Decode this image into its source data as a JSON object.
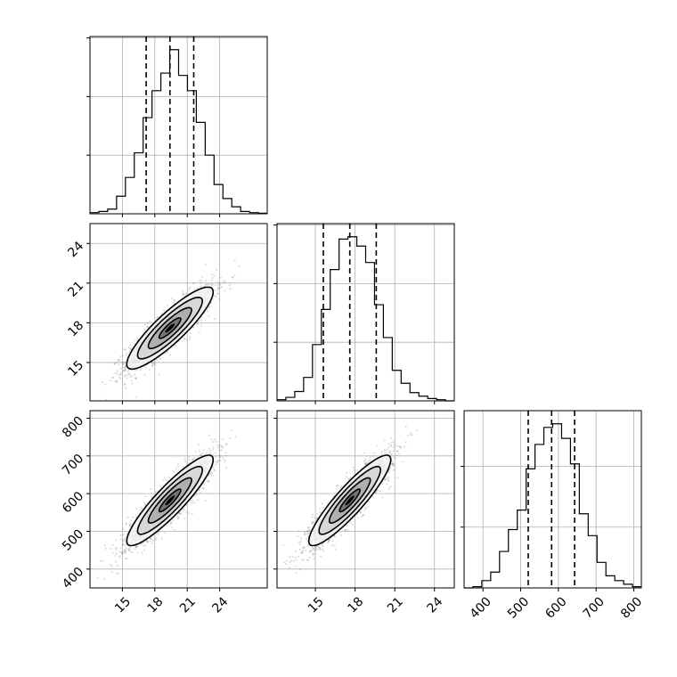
{
  "chart_data": {
    "type": "corner",
    "parameters": [
      {
        "id": "p1",
        "label": "",
        "range": [
          12.0,
          28.4
        ],
        "mean": 19.4,
        "sd": 2.0,
        "quantiles": [
          17.2,
          19.4,
          21.6
        ],
        "ticks": [
          15,
          18,
          21,
          24
        ]
      },
      {
        "id": "p2",
        "label": "",
        "range": [
          12.1,
          25.5
        ],
        "mean": 17.6,
        "sd": 1.55,
        "quantiles": [
          15.6,
          17.6,
          19.6
        ],
        "ticks": [
          15,
          18,
          21,
          24
        ]
      },
      {
        "id": "p3",
        "label": "",
        "range": [
          350,
          820
        ],
        "mean": 582,
        "sd": 60,
        "quantiles": [
          520,
          582,
          643
        ],
        "ticks": [
          400,
          500,
          600,
          700,
          800
        ]
      }
    ],
    "correlations": [
      [
        1,
        0.88,
        0.9
      ],
      [
        0.88,
        1,
        0.9
      ],
      [
        0.9,
        0.9,
        1
      ]
    ],
    "diagonal_histograms": [
      {
        "param": "p1",
        "bin_edges": [
          12.0,
          12.82,
          13.64,
          14.46,
          15.28,
          16.1,
          16.92,
          17.74,
          18.56,
          19.38,
          20.2,
          21.02,
          21.84,
          22.66,
          23.48,
          24.3,
          25.12,
          25.94,
          26.76,
          27.58,
          28.4
        ],
        "counts": [
          10,
          20,
          40,
          150,
          310,
          520,
          820,
          1050,
          1200,
          1400,
          1180,
          1050,
          780,
          500,
          250,
          130,
          60,
          20,
          10,
          5
        ]
      },
      {
        "param": "p2",
        "bin_edges": [
          12.1,
          12.77,
          13.44,
          14.11,
          14.78,
          15.45,
          16.12,
          16.79,
          17.46,
          18.13,
          18.8,
          19.47,
          20.14,
          20.81,
          21.48,
          22.15,
          22.82,
          23.49,
          24.16,
          24.83,
          25.5
        ],
        "counts": [
          10,
          30,
          80,
          200,
          480,
          780,
          1120,
          1380,
          1400,
          1320,
          1180,
          820,
          540,
          260,
          150,
          70,
          40,
          20,
          10,
          0
        ]
      },
      {
        "param": "p3",
        "bin_edges": [
          350,
          373.5,
          397,
          420.5,
          444,
          467.5,
          491,
          514.5,
          538,
          561.5,
          585,
          608.5,
          632,
          655.5,
          679,
          702.5,
          726,
          749.5,
          773,
          796.5,
          820
        ],
        "counts": [
          0,
          10,
          60,
          130,
          300,
          480,
          640,
          980,
          1180,
          1320,
          1350,
          1230,
          1020,
          610,
          430,
          210,
          100,
          60,
          30,
          10
        ]
      }
    ],
    "panels": [
      {
        "x": "p1",
        "y": "p2",
        "row": 1,
        "col": 0
      },
      {
        "x": "p1",
        "y": "p3",
        "row": 2,
        "col": 0
      },
      {
        "x": "p2",
        "y": "p3",
        "row": 2,
        "col": 1
      }
    ],
    "contour_levels_sigma": [
      0.5,
      1.0,
      1.5,
      2.0
    ],
    "grid": true,
    "legend": "none"
  }
}
